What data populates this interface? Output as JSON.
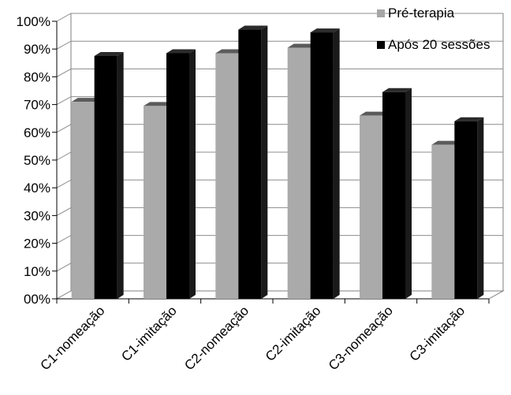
{
  "chart_data": {
    "type": "bar",
    "categories": [
      "C1-nomeação",
      "C1-imitação",
      "C2-nomeação",
      "C2-imitação",
      "C3-nomeação",
      "C3-imitação"
    ],
    "series": [
      {
        "name": "Pré-terapia",
        "values": [
          71,
          69.5,
          88.5,
          90.5,
          66,
          55.5
        ],
        "color": "#a6a6a6"
      },
      {
        "name": "Após 20 sessões",
        "values": [
          87.5,
          88.5,
          97,
          96,
          74.5,
          64
        ],
        "color": "#000000"
      }
    ],
    "yticks": [
      "00%",
      "10%",
      "20%",
      "30%",
      "40%",
      "50%",
      "60%",
      "70%",
      "80%",
      "90%",
      "100%"
    ],
    "ylim": [
      0,
      100
    ],
    "legend_position": "top-right",
    "style": "3d-bar",
    "grid": true
  }
}
